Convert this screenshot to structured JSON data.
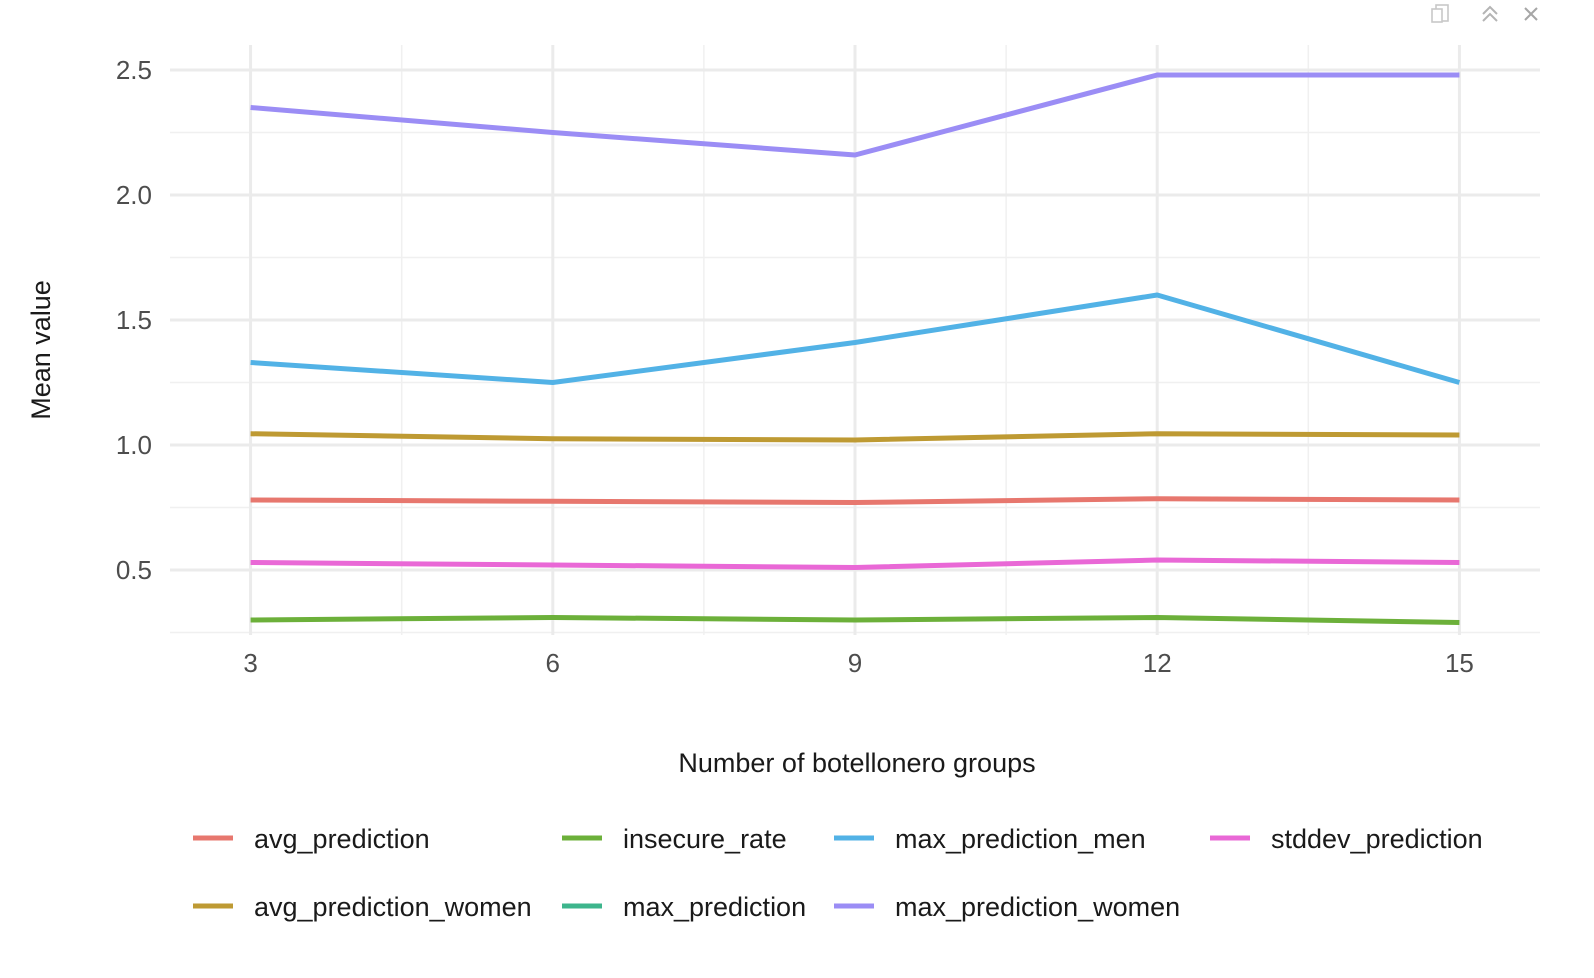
{
  "toolbar": {
    "icons": [
      "copy-icon",
      "collapse-icon",
      "close-icon"
    ]
  },
  "chart_data": {
    "type": "line",
    "xlabel": "Number of botellonero groups",
    "ylabel": "Mean value",
    "x": [
      3,
      6,
      9,
      12,
      15
    ],
    "xlim": [
      2.2,
      15.8
    ],
    "ylim": [
      0.24,
      2.6
    ],
    "xticks": [
      3,
      6,
      9,
      12,
      15
    ],
    "yticks": [
      0.5,
      1.0,
      1.5,
      2.0,
      2.5
    ],
    "ytick_labels": [
      "0.5",
      "1.0",
      "1.5",
      "2.0",
      "2.5"
    ],
    "grid": true,
    "legend_position": "bottom",
    "series": [
      {
        "name": "avg_prediction",
        "color": "#E7776E",
        "values": [
          0.78,
          0.775,
          0.77,
          0.785,
          0.78
        ]
      },
      {
        "name": "avg_prediction_women",
        "color": "#BE9A33",
        "values": [
          1.045,
          1.025,
          1.02,
          1.045,
          1.04
        ]
      },
      {
        "name": "insecure_rate",
        "color": "#6CB03A",
        "values": [
          0.3,
          0.31,
          0.3,
          0.31,
          0.29
        ]
      },
      {
        "name": "max_prediction",
        "color": "#3DB58C",
        "values": [
          null,
          null,
          null,
          null,
          null
        ]
      },
      {
        "name": "max_prediction_men",
        "color": "#52B2E6",
        "values": [
          1.33,
          1.25,
          1.41,
          1.6,
          1.25
        ]
      },
      {
        "name": "max_prediction_women",
        "color": "#9B8DF5",
        "values": [
          2.35,
          2.25,
          2.16,
          2.48,
          2.48
        ]
      },
      {
        "name": "stddev_prediction",
        "color": "#E968D6",
        "values": [
          0.53,
          0.52,
          0.51,
          0.54,
          0.53
        ]
      }
    ],
    "legend_order": [
      "avg_prediction",
      "insecure_rate",
      "max_prediction_men",
      "stddev_prediction",
      "avg_prediction_women",
      "max_prediction",
      "max_prediction_women"
    ]
  }
}
